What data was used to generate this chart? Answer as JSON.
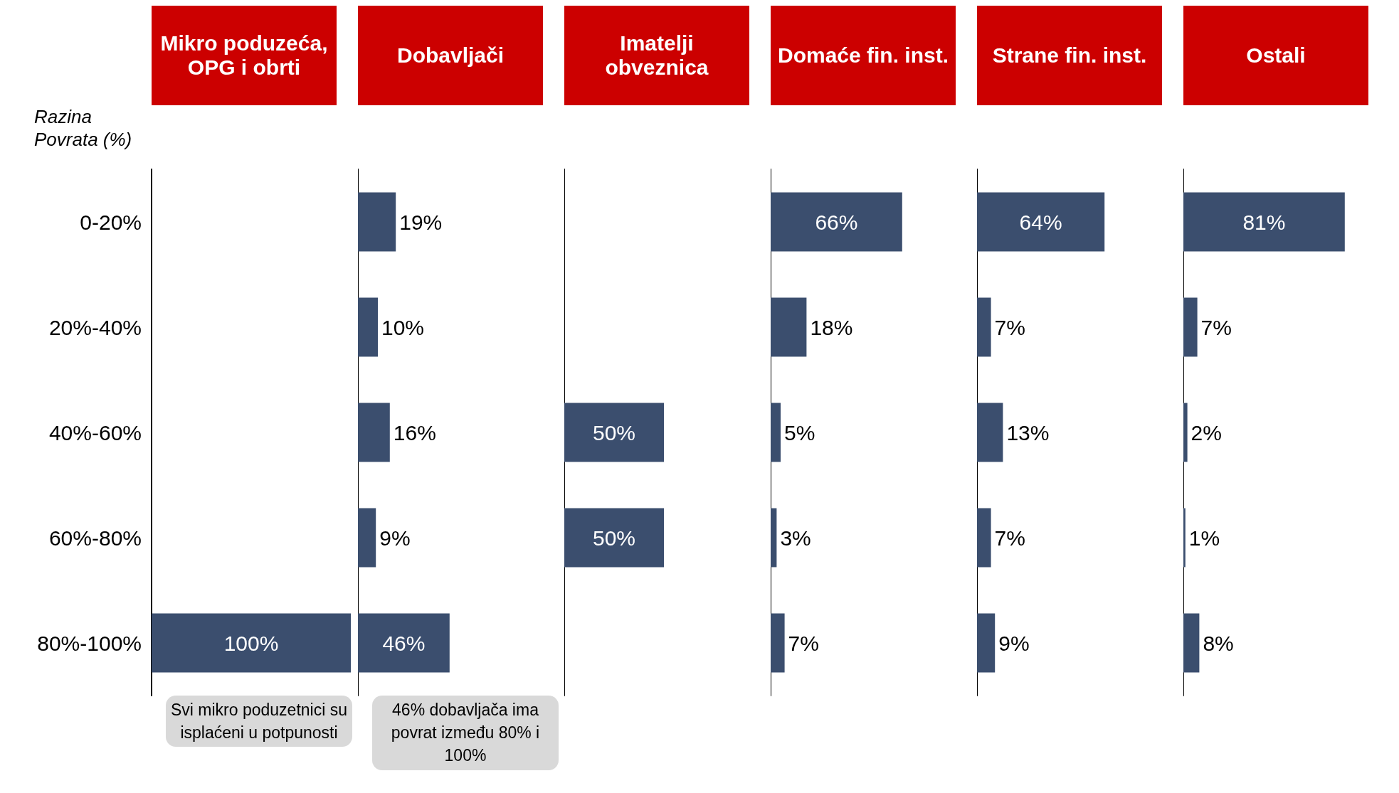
{
  "chart_data": [
    {
      "type": "bar",
      "orientation": "horizontal",
      "title": "Mikro poduzeća, OPG i obrti",
      "ylabel": "Razina Povrata (%)",
      "categories": [
        "0-20%",
        "20%-40%",
        "40%-60%",
        "60%-80%",
        "80%-100%"
      ],
      "values": [
        null,
        null,
        null,
        null,
        100
      ],
      "value_labels": [
        null,
        null,
        null,
        null,
        "100%"
      ],
      "color": "#3b4e6e",
      "tick_labels": "y",
      "annotations": [
        "Svi mikro poduzetnici su isplaćeni u potpunosti"
      ]
    },
    {
      "type": "bar",
      "orientation": "horizontal",
      "title": "Dobavljači",
      "categories": [
        null,
        null,
        null,
        null,
        null
      ],
      "values": [
        19,
        10,
        16,
        9,
        46
      ],
      "value_labels": [
        "19%",
        "10%",
        "16%",
        "9%",
        "46%"
      ],
      "color": "#3b4e6e",
      "tick_labels": false,
      "annotations": [
        "46% dobavljača ima povrat između 80% i 100%"
      ]
    },
    {
      "type": "bar",
      "orientation": "horizontal",
      "title": "Imatelji obveznica",
      "categories": [
        null,
        null,
        null,
        null,
        null
      ],
      "values": [
        null,
        null,
        50,
        50,
        null
      ],
      "value_labels": [
        null,
        null,
        "50%",
        "50%",
        null
      ],
      "color": "#3b4e6e",
      "tick_labels": false
    },
    {
      "type": "bar",
      "orientation": "horizontal",
      "title": "Domaće fin. inst.",
      "categories": [
        null,
        null,
        null,
        null,
        null
      ],
      "values": [
        66,
        18,
        5,
        3,
        7
      ],
      "value_labels": [
        "66%",
        "18%",
        "5%",
        "3%",
        "7%"
      ],
      "color": "#3b4e6e",
      "tick_labels": false
    },
    {
      "type": "bar",
      "orientation": "horizontal",
      "title": "Strane fin. inst.",
      "categories": [
        null,
        null,
        null,
        null,
        null
      ],
      "values": [
        64,
        7,
        13,
        7,
        9
      ],
      "value_labels": [
        "64%",
        "7%",
        "13%",
        "7%",
        "9%"
      ],
      "color": "#3b4e6e",
      "tick_labels": false
    },
    {
      "type": "bar",
      "orientation": "horizontal",
      "title": "Ostali",
      "categories": [
        null,
        null,
        null,
        null,
        null
      ],
      "values": [
        81,
        7,
        2,
        1,
        8
      ],
      "value_labels": [
        "81%",
        "7%",
        "2%",
        "1%",
        "8%"
      ],
      "color": "#3b4e6e",
      "tick_labels": false
    }
  ]
}
